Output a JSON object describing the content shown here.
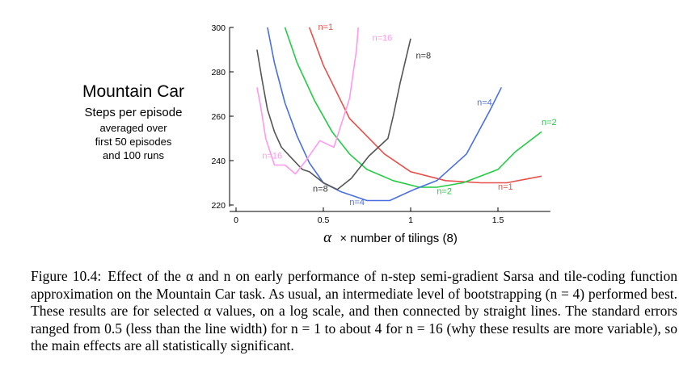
{
  "chart_data": {
    "type": "line",
    "title": "Mountain Car",
    "subtitle": "Steps per episode",
    "note_lines": [
      "averaged over",
      "first 50 episodes",
      "and 100 runs"
    ],
    "xlabel_symbol": "α",
    "xlabel_text": "× number of tilings (8)",
    "xlim": [
      0,
      1.8
    ],
    "ylim": [
      220,
      300
    ],
    "x_ticks": [
      0,
      0.5,
      1,
      1.5
    ],
    "x_tick_labels": [
      "0",
      "0.5",
      "1",
      "1.5"
    ],
    "y_ticks": [
      220,
      240,
      260,
      280,
      300
    ],
    "y_tick_labels": [
      "220",
      "240",
      "260",
      "280",
      "300"
    ],
    "grid": false,
    "series": [
      {
        "name": "n=1",
        "color": "#e8504b",
        "x": [
          0.42,
          0.5,
          0.65,
          0.85,
          1.0,
          1.2,
          1.4,
          1.55,
          1.75
        ],
        "y": [
          300,
          283,
          259,
          243,
          235,
          231,
          230,
          230,
          233
        ]
      },
      {
        "name": "n=2",
        "color": "#22cc44",
        "x": [
          0.28,
          0.35,
          0.45,
          0.55,
          0.65,
          0.75,
          0.9,
          1.05,
          1.15,
          1.3,
          1.5,
          1.6,
          1.75
        ],
        "y": [
          300,
          284,
          267,
          253,
          243,
          236,
          231,
          228,
          228,
          230,
          236,
          244,
          253
        ]
      },
      {
        "name": "n=4",
        "color": "#4a6fe0",
        "x": [
          0.18,
          0.22,
          0.28,
          0.35,
          0.42,
          0.5,
          0.6,
          0.75,
          0.88,
          1.02,
          1.15,
          1.32,
          1.45,
          1.52
        ],
        "y": [
          300,
          284,
          266,
          251,
          239,
          230,
          226,
          222,
          222,
          227,
          231,
          243,
          262,
          273
        ]
      },
      {
        "name": "n=8",
        "color": "#555555",
        "x": [
          0.12,
          0.15,
          0.18,
          0.22,
          0.26,
          0.32,
          0.38,
          0.42,
          0.5,
          0.58,
          0.66,
          0.76,
          0.87,
          0.9,
          0.94,
          1.0
        ],
        "y": [
          290,
          276,
          263,
          253,
          246,
          241,
          236,
          235,
          230,
          227,
          232,
          242,
          250,
          260,
          275,
          295
        ]
      },
      {
        "name": "n=16",
        "color": "#ff99ee",
        "x": [
          0.12,
          0.14,
          0.17,
          0.22,
          0.28,
          0.34,
          0.4,
          0.48,
          0.56,
          0.65,
          0.69,
          0.7
        ],
        "y": [
          273,
          265,
          250,
          238,
          238,
          234,
          240,
          249,
          246,
          268,
          290,
          300
        ]
      }
    ],
    "line_labels": [
      {
        "text": "n=1",
        "color": "#e8504b",
        "x": 0.47,
        "y": 299
      },
      {
        "text": "n=1",
        "color": "#e8504b",
        "x": 1.5,
        "y": 227
      },
      {
        "text": "n=2",
        "color": "#22cc44",
        "x": 1.75,
        "y": 256
      },
      {
        "text": "n=2",
        "color": "#22cc44",
        "x": 1.15,
        "y": 225
      },
      {
        "text": "n=4",
        "color": "#4a6fe0",
        "x": 1.38,
        "y": 265
      },
      {
        "text": "n=4",
        "color": "#4a6fe0",
        "x": 0.65,
        "y": 220
      },
      {
        "text": "n=8",
        "color": "#333333",
        "x": 1.03,
        "y": 286
      },
      {
        "text": "n=8",
        "color": "#333333",
        "x": 0.44,
        "y": 226
      },
      {
        "text": "n=16",
        "color": "#ff99ee",
        "x": 0.78,
        "y": 294
      },
      {
        "text": "n=16",
        "color": "#ff99ee",
        "x": 0.15,
        "y": 241
      }
    ]
  },
  "caption": {
    "figure_label": "Figure 10.4:",
    "text": "Effect of the α and n on early performance of n-step semi-gradient Sarsa and tile-coding function approximation on the Mountain Car task. As usual, an intermediate level of bootstrapping (n = 4) performed best. These results are for selected α values, on a log scale, and then connected by straight lines. The standard errors ranged from 0.5 (less than the line width) for n = 1 to about 4 for n = 16 (why these results are more variable), so the main effects are all statistically significant."
  }
}
